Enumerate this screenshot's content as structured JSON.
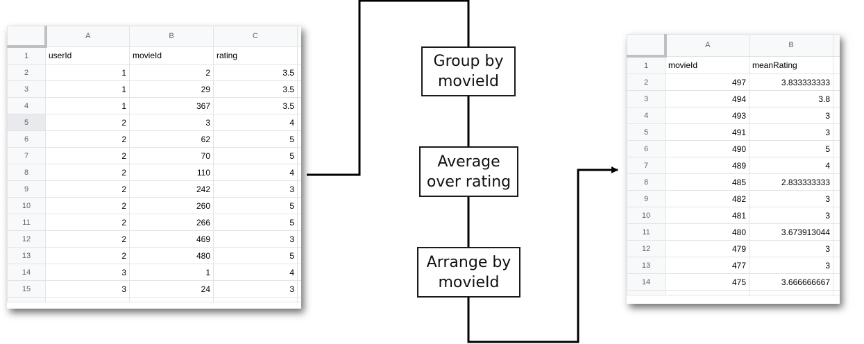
{
  "left_table": {
    "column_letters": [
      "A",
      "B",
      "C"
    ],
    "headers": [
      "userId",
      "movieId",
      "rating"
    ],
    "rows": [
      [
        "1",
        "2",
        "3.5"
      ],
      [
        "1",
        "29",
        "3.5"
      ],
      [
        "1",
        "367",
        "3.5"
      ],
      [
        "2",
        "3",
        "4"
      ],
      [
        "2",
        "62",
        "5"
      ],
      [
        "2",
        "70",
        "5"
      ],
      [
        "2",
        "110",
        "4"
      ],
      [
        "2",
        "242",
        "3"
      ],
      [
        "2",
        "260",
        "5"
      ],
      [
        "2",
        "266",
        "5"
      ],
      [
        "2",
        "469",
        "3"
      ],
      [
        "2",
        "480",
        "5"
      ],
      [
        "3",
        "1",
        "4"
      ],
      [
        "3",
        "24",
        "3"
      ]
    ],
    "selected_row_number": 5
  },
  "steps": {
    "group": [
      "Group by",
      "movieId"
    ],
    "average": [
      "Average",
      "over rating"
    ],
    "arrange": [
      "Arrange by",
      "movieId"
    ]
  },
  "right_table": {
    "column_letters": [
      "A",
      "B"
    ],
    "headers": [
      "movieId",
      "meanRating"
    ],
    "rows": [
      [
        "497",
        "3.833333333"
      ],
      [
        "494",
        "3.8"
      ],
      [
        "493",
        "3"
      ],
      [
        "491",
        "3"
      ],
      [
        "490",
        "5"
      ],
      [
        "489",
        "4"
      ],
      [
        "485",
        "2.833333333"
      ],
      [
        "482",
        "3"
      ],
      [
        "481",
        "3"
      ],
      [
        "480",
        "3.673913044"
      ],
      [
        "479",
        "3"
      ],
      [
        "477",
        "3"
      ],
      [
        "475",
        "3.666666667"
      ]
    ]
  },
  "colors": {
    "grid": "#e2e3e3",
    "header_bg": "#f8f9fa",
    "header_text": "#5f6368",
    "connector": "#000000"
  }
}
